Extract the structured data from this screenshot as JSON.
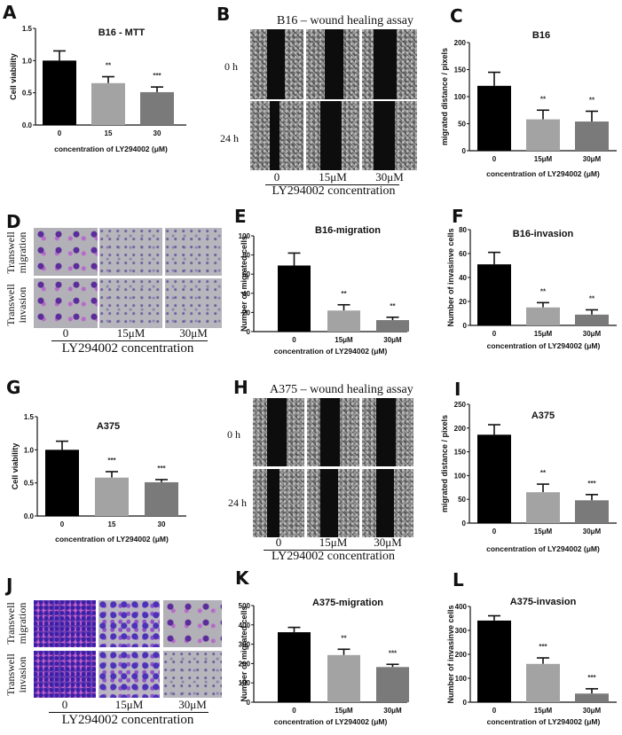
{
  "panels": {
    "A": {
      "letter": "A"
    },
    "B": {
      "letter": "B",
      "title": "B16 – wound healing assay",
      "rows": [
        "0 h",
        "24 h"
      ],
      "cols": [
        "0",
        "15μM",
        "30μM"
      ],
      "caption": "LY294002 concentration"
    },
    "C": {
      "letter": "C"
    },
    "D": {
      "letter": "D",
      "rows": [
        "Transwell migration",
        "Transwell invasion"
      ],
      "row_line1": [
        "Transwell",
        "Transwell"
      ],
      "row_line2": [
        "migration",
        "invasion"
      ],
      "cols": [
        "0",
        "15μM",
        "30μM"
      ],
      "caption": "LY294002 concentration"
    },
    "E": {
      "letter": "E"
    },
    "F": {
      "letter": "F"
    },
    "G": {
      "letter": "G"
    },
    "H": {
      "letter": "H",
      "title": "A375 – wound healing assay",
      "rows": [
        "0 h",
        "24 h"
      ],
      "cols": [
        "0",
        "15μM",
        "30μM"
      ],
      "caption": "LY294002 concentration"
    },
    "I": {
      "letter": "I"
    },
    "J": {
      "letter": "J",
      "row_line1": [
        "Transwell",
        "Transwell"
      ],
      "row_line2": [
        "migration",
        "invasion"
      ],
      "cols": [
        "0",
        "15μM",
        "30μM"
      ],
      "caption": "LY294002 concentration"
    },
    "K": {
      "letter": "K"
    },
    "L": {
      "letter": "L"
    }
  },
  "bar_colors": [
    "#000000",
    "#a3a3a3",
    "#7a7a7a"
  ],
  "chart_data": [
    {
      "panel": "A",
      "type": "bar",
      "title": "B16 - MTT",
      "xlabel": "concentration of LY294002 (μM)",
      "ylabel": "Cell viability",
      "categories": [
        "0",
        "15",
        "30"
      ],
      "values": [
        1.0,
        0.65,
        0.51
      ],
      "errors": [
        0.15,
        0.1,
        0.08
      ],
      "significance": [
        "",
        "**",
        "***"
      ],
      "ylim": [
        0,
        1.5
      ],
      "yticks": [
        "0.0",
        "0.5",
        "1.0",
        "1.5"
      ],
      "grid": false,
      "legend": null
    },
    {
      "panel": "C",
      "type": "bar",
      "title": "B16",
      "xlabel": "concentration of LY294002 (μM)",
      "ylabel": "migrated distance / pixels",
      "categories": [
        "0",
        "15μM",
        "30μM"
      ],
      "values": [
        120,
        58,
        54
      ],
      "errors": [
        25,
        17,
        19
      ],
      "significance": [
        "",
        "**",
        "**"
      ],
      "ylim": [
        0,
        200
      ],
      "yticks": [
        "0",
        "50",
        "100",
        "150",
        "200"
      ],
      "grid": false,
      "legend": null
    },
    {
      "panel": "E",
      "type": "bar",
      "title": "B16-migration",
      "xlabel": "concentration of LY294002 (μM)",
      "ylabel": "Number of migrated cells",
      "categories": [
        "0",
        "15μM",
        "30μM"
      ],
      "values": [
        69,
        22,
        12
      ],
      "errors": [
        13,
        6,
        3
      ],
      "significance": [
        "",
        "**",
        "**"
      ],
      "ylim": [
        0,
        100
      ],
      "yticks": [
        "0",
        "20",
        "40",
        "60",
        "80",
        "100"
      ],
      "grid": false,
      "legend": null
    },
    {
      "panel": "F",
      "type": "bar",
      "title": "B16-invasion",
      "xlabel": "concentration of LY294002 (μM)",
      "ylabel": "Number of invasinve cells",
      "categories": [
        "0",
        "15μM",
        "30μM"
      ],
      "values": [
        51,
        15,
        9
      ],
      "errors": [
        10,
        4,
        4
      ],
      "significance": [
        "",
        "**",
        "**"
      ],
      "ylim": [
        0,
        80
      ],
      "yticks": [
        "0",
        "20",
        "40",
        "60",
        "80"
      ],
      "grid": false,
      "legend": null
    },
    {
      "panel": "G",
      "type": "bar",
      "title": "A375",
      "xlabel": "concentration of LY294002 (μM)",
      "ylabel": "Cell viability",
      "categories": [
        "0",
        "15",
        "30"
      ],
      "values": [
        1.0,
        0.58,
        0.51
      ],
      "errors": [
        0.13,
        0.09,
        0.04
      ],
      "significance": [
        "",
        "***",
        "***"
      ],
      "ylim": [
        0,
        1.5
      ],
      "yticks": [
        "0.0",
        "0.5",
        "1.0",
        "1.5"
      ],
      "grid": false,
      "legend": null
    },
    {
      "panel": "I",
      "type": "bar",
      "title": "A375",
      "xlabel": "concentration of LY294002 (μM)",
      "ylabel": "migrated distance / pixels",
      "categories": [
        "0",
        "15μM",
        "30μM"
      ],
      "values": [
        186,
        65,
        48
      ],
      "errors": [
        21,
        17,
        12
      ],
      "significance": [
        "",
        "**",
        "***"
      ],
      "ylim": [
        0,
        250
      ],
      "yticks": [
        "0",
        "50",
        "100",
        "150",
        "200",
        "250"
      ],
      "grid": false,
      "legend": null
    },
    {
      "panel": "K",
      "type": "bar",
      "title": "A375-migration",
      "xlabel": "concentration of LY294002 (μM)",
      "ylabel": "Number of migrated cells",
      "categories": [
        "0",
        "15μM",
        "30μM"
      ],
      "values": [
        362,
        244,
        182
      ],
      "errors": [
        25,
        30,
        14
      ],
      "significance": [
        "",
        "**",
        "***"
      ],
      "ylim": [
        0,
        500
      ],
      "yticks": [
        "0",
        "100",
        "200",
        "300",
        "400",
        "500"
      ],
      "grid": false,
      "legend": null
    },
    {
      "panel": "L",
      "type": "bar",
      "title": "A375-invasion",
      "xlabel": "concentration of LY294002 (μM)",
      "ylabel": "Number of invasinve cells",
      "categories": [
        "0",
        "15μM",
        "30μM"
      ],
      "values": [
        341,
        160,
        36
      ],
      "errors": [
        20,
        25,
        20
      ],
      "significance": [
        "",
        "***",
        "***"
      ],
      "ylim": [
        0,
        400
      ],
      "yticks": [
        "0",
        "100",
        "200",
        "300",
        "400"
      ],
      "grid": false,
      "legend": null
    }
  ]
}
